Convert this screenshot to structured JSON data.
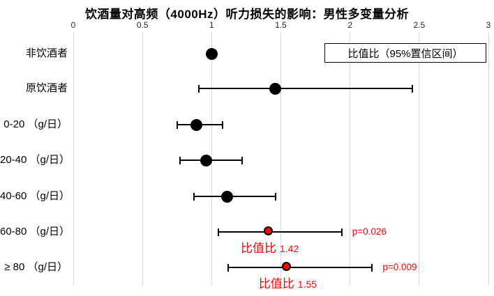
{
  "chart_data": {
    "type": "scatter",
    "subtype": "forest-plot",
    "title": "饮酒量对高频（4000Hz）听力损失的影响：男性多变量分析",
    "legend": "比值比（95%置信区间）",
    "legend_position": "top-right",
    "x_axis_position": "top",
    "xlim": [
      0,
      3
    ],
    "x_tick_labels": [
      "0",
      "0.5",
      "1",
      "1.5",
      "2",
      "2.5",
      "3"
    ],
    "x_tick_values": [
      0,
      0.5,
      1,
      1.5,
      2,
      2.5,
      3
    ],
    "grid": true,
    "rows": [
      {
        "category": "非饮酒者",
        "or": 1.0,
        "ci_low": null,
        "ci_high": null,
        "highlight": false
      },
      {
        "category": "原饮酒者",
        "or": 1.46,
        "ci_low": 0.91,
        "ci_high": 2.45,
        "highlight": false
      },
      {
        "category": "0-20 （g/日）",
        "or": 0.89,
        "ci_low": 0.75,
        "ci_high": 1.08,
        "highlight": false
      },
      {
        "category": "20-40 （g/日）",
        "or": 0.96,
        "ci_low": 0.77,
        "ci_high": 1.22,
        "highlight": false
      },
      {
        "category": "40-60 （g/日）",
        "or": 1.11,
        "ci_low": 0.87,
        "ci_high": 1.46,
        "highlight": false
      },
      {
        "category": "60-80 （g/日）",
        "or": 1.42,
        "ci_low": 1.05,
        "ci_high": 1.94,
        "highlight": true,
        "p_label": "p=0.026",
        "annotation_label": "比值比",
        "annotation_value": "1.42"
      },
      {
        "category": "≥ 80 （g/日）",
        "or": 1.55,
        "ci_low": 1.12,
        "ci_high": 2.16,
        "highlight": true,
        "p_label": "p=0.009",
        "annotation_label": "比值比",
        "annotation_value": "1.55"
      }
    ],
    "colors": {
      "point": "#000000",
      "line": "#000000",
      "highlight_point": "#ff0000",
      "highlight_text": "#ff0000",
      "gridline": "#d9d9d9",
      "background": "#ffffff"
    }
  }
}
